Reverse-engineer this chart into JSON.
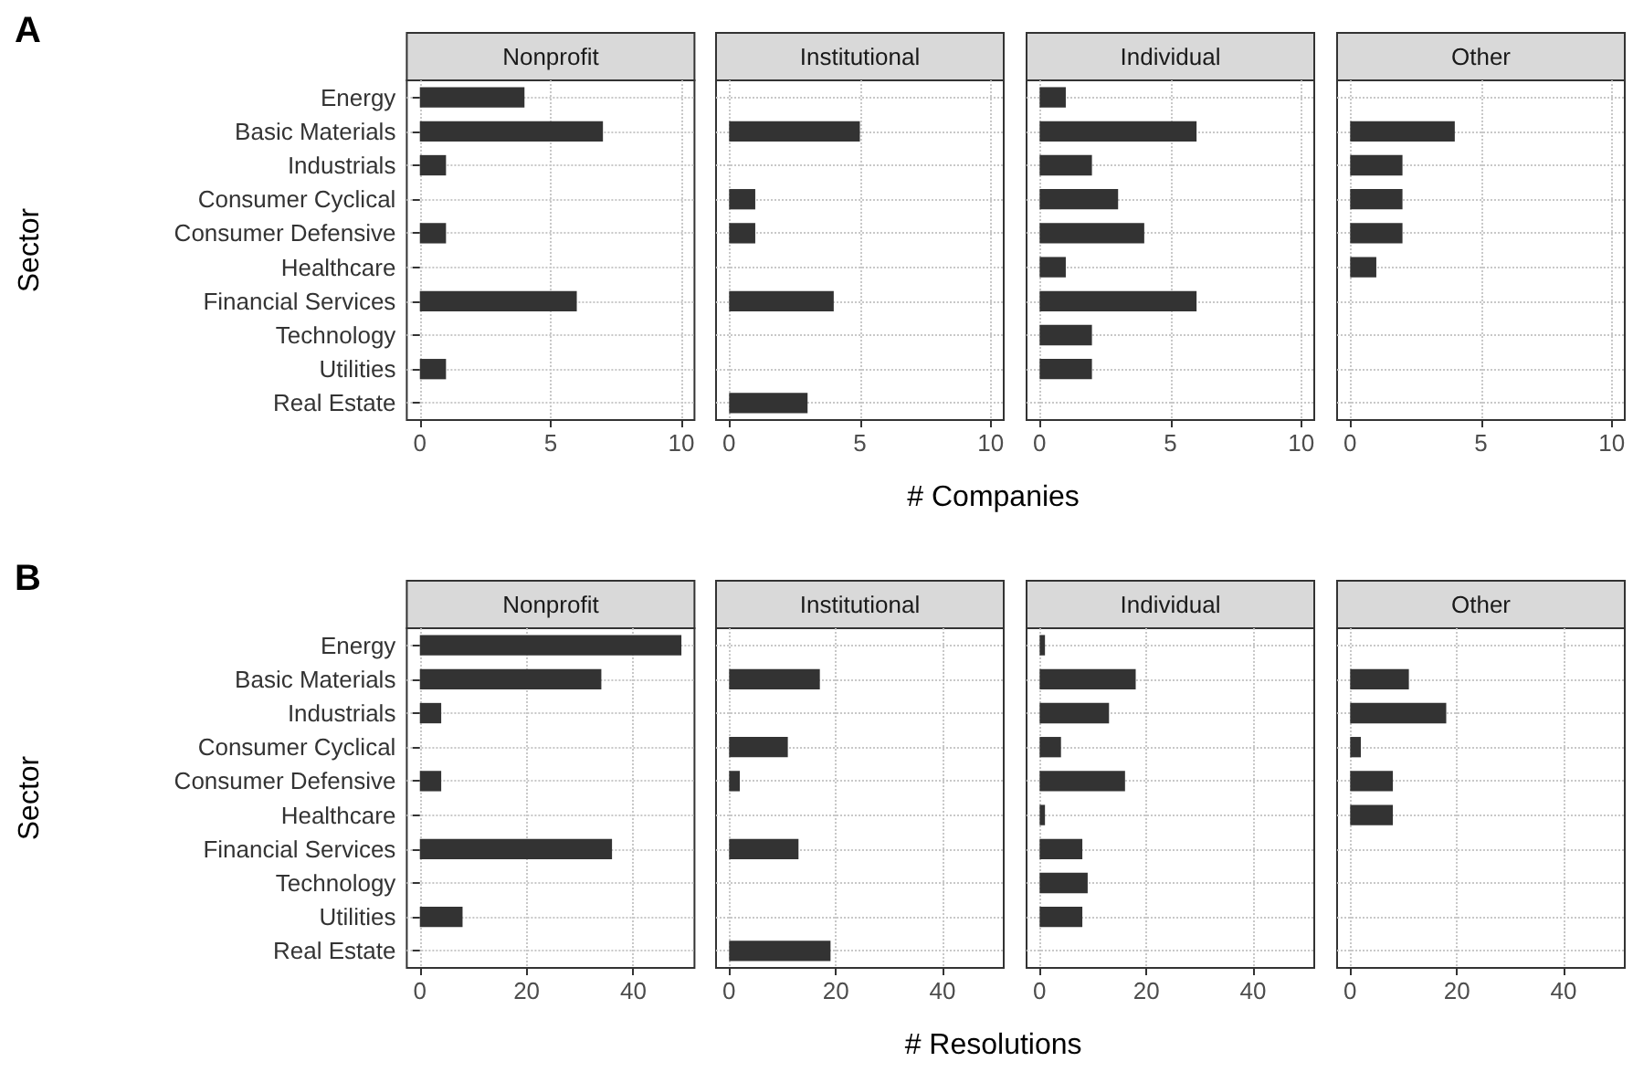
{
  "chart_data": [
    {
      "type": "bar",
      "orientation": "horizontal",
      "title": "Nonprofit",
      "ylabel": "Sector",
      "annotations": [
        "A"
      ],
      "categories": [
        "Energy",
        "Basic Materials",
        "Industrials",
        "Consumer Cyclical",
        "Consumer Defensive",
        "Healthcare",
        "Financial Services",
        "Technology",
        "Utilities",
        "Real Estate"
      ],
      "values": [
        4,
        7,
        1,
        null,
        1,
        null,
        6,
        null,
        1,
        null
      ],
      "color": "#333333",
      "xlim": [
        -0.5,
        10.5
      ],
      "xticks": [
        0,
        5,
        10
      ],
      "grid": true
    },
    {
      "type": "bar",
      "orientation": "horizontal",
      "title": "Institutional",
      "xlabel": "# Companies",
      "categories": [
        null,
        null,
        null,
        null,
        null,
        null,
        null,
        null,
        null,
        null
      ],
      "values": [
        null,
        5,
        null,
        1,
        1,
        null,
        4,
        null,
        null,
        3
      ],
      "color": "#333333",
      "xlim": [
        -0.5,
        10.5
      ],
      "xticks": [
        0,
        5,
        10
      ],
      "grid": true,
      "tick_labels": "x"
    },
    {
      "type": "bar",
      "orientation": "horizontal",
      "title": "Individual",
      "categories": [
        null,
        null,
        null,
        null,
        null,
        null,
        null,
        null,
        null,
        null
      ],
      "values": [
        1,
        6,
        2,
        3,
        4,
        1,
        6,
        2,
        2,
        null
      ],
      "color": "#333333",
      "xlim": [
        -0.5,
        10.5
      ],
      "xticks": [
        0,
        5,
        10
      ],
      "grid": true,
      "tick_labels": "x"
    },
    {
      "type": "bar",
      "orientation": "horizontal",
      "title": "Other",
      "categories": [
        null,
        null,
        null,
        null,
        null,
        null,
        null,
        null,
        null,
        null
      ],
      "values": [
        null,
        4,
        2,
        2,
        2,
        1,
        null,
        null,
        null,
        null
      ],
      "color": "#333333",
      "xlim": [
        -0.5,
        10.5
      ],
      "xticks": [
        0,
        5,
        10
      ],
      "grid": true,
      "tick_labels": "x"
    },
    {
      "type": "bar",
      "orientation": "horizontal",
      "title": "Nonprofit",
      "ylabel": "Sector",
      "annotations": [
        "B"
      ],
      "categories": [
        "Energy",
        "Basic Materials",
        "Industrials",
        "Consumer Cyclical",
        "Consumer Defensive",
        "Healthcare",
        "Financial Services",
        "Technology",
        "Utilities",
        "Real Estate"
      ],
      "values": [
        49,
        34,
        4,
        null,
        4,
        null,
        36,
        null,
        8,
        null
      ],
      "color": "#333333",
      "xlim": [
        -2.45,
        51.45
      ],
      "xticks": [
        0,
        20,
        40
      ],
      "grid": true
    },
    {
      "type": "bar",
      "orientation": "horizontal",
      "title": "Institutional",
      "xlabel": "# Resolutions",
      "categories": [
        null,
        null,
        null,
        null,
        null,
        null,
        null,
        null,
        null,
        null
      ],
      "values": [
        null,
        17,
        null,
        11,
        2,
        null,
        13,
        null,
        null,
        19
      ],
      "color": "#333333",
      "xlim": [
        -2.45,
        51.45
      ],
      "xticks": [
        0,
        20,
        40
      ],
      "grid": true,
      "tick_labels": "x"
    },
    {
      "type": "bar",
      "orientation": "horizontal",
      "title": "Individual",
      "categories": [
        null,
        null,
        null,
        null,
        null,
        null,
        null,
        null,
        null,
        null
      ],
      "values": [
        1,
        18,
        13,
        4,
        16,
        1,
        8,
        9,
        8,
        null
      ],
      "color": "#333333",
      "xlim": [
        -2.45,
        51.45
      ],
      "xticks": [
        0,
        20,
        40
      ],
      "grid": true,
      "tick_labels": "x"
    },
    {
      "type": "bar",
      "orientation": "horizontal",
      "title": "Other",
      "categories": [
        null,
        null,
        null,
        null,
        null,
        null,
        null,
        null,
        null,
        null
      ],
      "values": [
        null,
        11,
        18,
        2,
        8,
        8,
        null,
        null,
        null,
        null
      ],
      "color": "#333333",
      "xlim": [
        -2.45,
        51.45
      ],
      "xticks": [
        0,
        20,
        40
      ],
      "grid": true,
      "tick_labels": "x"
    }
  ]
}
